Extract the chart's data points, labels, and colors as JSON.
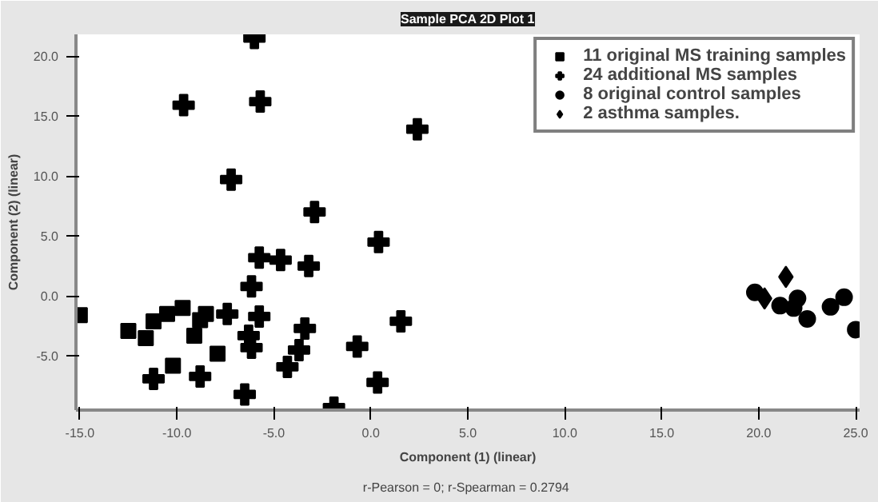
{
  "chart_data": {
    "type": "scatter",
    "title": "Sample PCA 2D Plot 1",
    "xlabel": "Component (1) (linear)",
    "ylabel": "Component (2) (linear)",
    "annotations": [
      "r-Pearson = 0;  r-Spearman = 0.2794"
    ],
    "xlim": [
      -15.2,
      25.2
    ],
    "ylim": [
      -9.5,
      21.8
    ],
    "xticks": [
      {
        "value": -15,
        "label": "-15.0"
      },
      {
        "value": -10,
        "label": "-10.0"
      },
      {
        "value": -5,
        "label": "-5.0"
      },
      {
        "value": 0,
        "label": "0.0"
      },
      {
        "value": 5,
        "label": "5.0"
      },
      {
        "value": 10,
        "label": "10.0"
      },
      {
        "value": 15,
        "label": "15.0"
      },
      {
        "value": 20,
        "label": "20.0"
      },
      {
        "value": 25,
        "label": "25.0"
      }
    ],
    "yticks": [
      {
        "value": -5,
        "label": "-5.0"
      },
      {
        "value": 0,
        "label": "0.0"
      },
      {
        "value": 5,
        "label": "5.0"
      },
      {
        "value": 10,
        "label": "10.0"
      },
      {
        "value": 15,
        "label": "15.0"
      },
      {
        "value": 20,
        "label": "20.0"
      }
    ],
    "grid": false,
    "legend": "top right",
    "series": [
      {
        "name": "11 original MS training samples",
        "color": "#000000",
        "marker": "square",
        "x": [
          -15.0,
          -12.5,
          -11.6,
          -11.2,
          -10.5,
          -9.7,
          -10.2,
          -9.1,
          -8.8,
          -8.5,
          -7.9
        ],
        "values": [
          -1.6,
          -2.9,
          -3.5,
          -2.1,
          -1.5,
          -1.0,
          -5.8,
          -3.3,
          -2.0,
          -1.5,
          -4.8
        ]
      },
      {
        "name": "24 additional MS samples",
        "color": "#000000",
        "marker": "cross",
        "x": [
          -6.0,
          -9.65,
          -5.7,
          2.4,
          -7.2,
          -2.9,
          0.4,
          -5.75,
          -4.65,
          -3.2,
          -6.15,
          -7.4,
          -5.75,
          1.55,
          -3.4,
          -6.3,
          -6.15,
          -3.7,
          -0.7,
          -4.3,
          -11.2,
          -8.8,
          0.35,
          -6.5,
          -1.9
        ],
        "values": [
          21.5,
          15.9,
          16.2,
          13.9,
          9.7,
          7.0,
          4.5,
          3.2,
          3.0,
          2.5,
          0.8,
          -1.5,
          -1.7,
          -2.1,
          -2.7,
          -3.3,
          -4.3,
          -4.5,
          -4.2,
          -5.9,
          -6.9,
          -6.7,
          -7.2,
          -8.2,
          -9.3
        ]
      },
      {
        "name": "8 original control samples",
        "color": "#000000",
        "marker": "circle",
        "x": [
          19.8,
          21.1,
          21.8,
          22.0,
          22.5,
          23.7,
          24.4,
          25.0
        ],
        "values": [
          0.3,
          -0.8,
          -1.0,
          -0.2,
          -1.9,
          -0.9,
          -0.1,
          -2.8
        ]
      },
      {
        "name": "2 asthma samples.",
        "color": "#000000",
        "marker": "diamond",
        "x": [
          21.4,
          20.3
        ],
        "values": [
          1.6,
          -0.2
        ]
      }
    ]
  }
}
